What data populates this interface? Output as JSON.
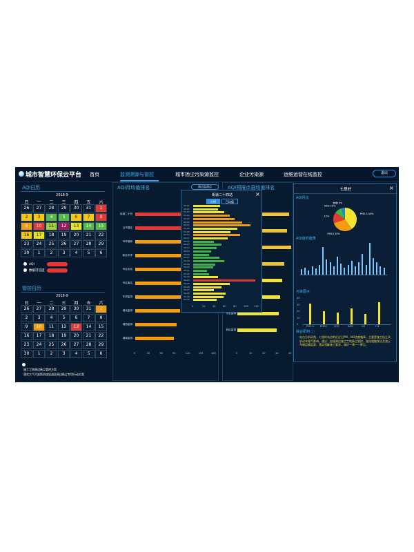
{
  "header": {
    "title": "城市智慧环保云平台",
    "nav": [
      "首页",
      "监测溯源与管控",
      "城市扬尘污染源监控",
      "企业污染源",
      "运维运营在线监控"
    ],
    "exit": "退出"
  },
  "aqi_calendar": {
    "title": "AQI日历",
    "month": "2018-9",
    "weekdays": [
      "日",
      "一",
      "二",
      "三",
      "四",
      "五",
      "六"
    ],
    "days": [
      {
        "d": "26",
        "c": "#0b1d31"
      },
      {
        "d": "27",
        "c": "#0b1d31"
      },
      {
        "d": "28",
        "c": "#0b1d31"
      },
      {
        "d": "29",
        "c": "#0b1d31"
      },
      {
        "d": "30",
        "c": "#0b1d31"
      },
      {
        "d": "31",
        "c": "#0b1d31"
      },
      {
        "d": "1",
        "c": "#e53935"
      },
      {
        "d": "2",
        "c": "#f5c518"
      },
      {
        "d": "3",
        "c": "#f5c518"
      },
      {
        "d": "4",
        "c": "#58b947"
      },
      {
        "d": "5",
        "c": "#58b947"
      },
      {
        "d": "6",
        "c": "#f5c518"
      },
      {
        "d": "7",
        "c": "#f5c518"
      },
      {
        "d": "8",
        "c": "#e53935"
      },
      {
        "d": "9",
        "c": "#f39c12"
      },
      {
        "d": "10",
        "c": "#e53935"
      },
      {
        "d": "11",
        "c": "#a6cf35"
      },
      {
        "d": "12",
        "c": "#9b1b55"
      },
      {
        "d": "13",
        "c": "#e8e31f"
      },
      {
        "d": "14",
        "c": "#58b947"
      },
      {
        "d": "15",
        "c": "#58b947"
      },
      {
        "d": "16",
        "c": "#f5c518"
      },
      {
        "d": "17",
        "c": "#e8e31f"
      },
      {
        "d": "18",
        "c": "#0b1d31"
      },
      {
        "d": "19",
        "c": "#0b1d31"
      },
      {
        "d": "20",
        "c": "#0b1d31"
      },
      {
        "d": "21",
        "c": "#0b1d31"
      },
      {
        "d": "22",
        "c": "#0b1d31"
      },
      {
        "d": "23",
        "c": "#0b1d31"
      },
      {
        "d": "24",
        "c": "#0b1d31"
      },
      {
        "d": "25",
        "c": "#0b1d31"
      },
      {
        "d": "26",
        "c": "#0b1d31"
      },
      {
        "d": "27",
        "c": "#0b1d31"
      },
      {
        "d": "28",
        "c": "#0b1d31"
      },
      {
        "d": "29",
        "c": "#0b1d31"
      },
      {
        "d": "30",
        "c": "#0b1d31"
      },
      {
        "d": "1",
        "c": "#0b1d31"
      },
      {
        "d": "2",
        "c": "#0b1d31"
      },
      {
        "d": "3",
        "c": "#0b1d31"
      },
      {
        "d": "4",
        "c": "#0b1d31"
      },
      {
        "d": "5",
        "c": "#0b1d31"
      },
      {
        "d": "6",
        "c": "#0b1d31"
      }
    ],
    "legend": [
      "AQI",
      "数据可信度"
    ]
  },
  "mgmt_calendar": {
    "title": "管控日历",
    "month": "2018-9",
    "weekdays": [
      "日",
      "一",
      "二",
      "三",
      "四",
      "五",
      "六"
    ],
    "days": [
      {
        "d": "26",
        "c": "#0b1d31"
      },
      {
        "d": "27",
        "c": "#0b1d31"
      },
      {
        "d": "28",
        "c": "#0b1d31"
      },
      {
        "d": "29",
        "c": "#0b1d31"
      },
      {
        "d": "30",
        "c": "#0b1d31"
      },
      {
        "d": "31",
        "c": "#0b1d31"
      },
      {
        "d": "1",
        "c": "#f39c12"
      },
      {
        "d": "2",
        "c": "#0b1d31"
      },
      {
        "d": "3",
        "c": "#0b1d31"
      },
      {
        "d": "4",
        "c": "#0b1d31"
      },
      {
        "d": "5",
        "c": "#0b1d31"
      },
      {
        "d": "6",
        "c": "#0b1d31"
      },
      {
        "d": "7",
        "c": "#0b1d31"
      },
      {
        "d": "8",
        "c": "#0b1d31"
      },
      {
        "d": "9",
        "c": "#0b1d31"
      },
      {
        "d": "10",
        "c": "#f39c12"
      },
      {
        "d": "11",
        "c": "#0b1d31"
      },
      {
        "d": "12",
        "c": "#0b1d31"
      },
      {
        "d": "13",
        "c": "#e53935"
      },
      {
        "d": "14",
        "c": "#0b1d31"
      },
      {
        "d": "15",
        "c": "#0b1d31"
      },
      {
        "d": "16",
        "c": "#0b1d31"
      },
      {
        "d": "17",
        "c": "#0b1d31"
      },
      {
        "d": "18",
        "c": "#0b1d31"
      },
      {
        "d": "19",
        "c": "#0b1d31"
      },
      {
        "d": "20",
        "c": "#0b1d31"
      },
      {
        "d": "21",
        "c": "#0b1d31"
      },
      {
        "d": "22",
        "c": "#0b1d31"
      },
      {
        "d": "23",
        "c": "#0b1d31"
      },
      {
        "d": "24",
        "c": "#0b1d31"
      },
      {
        "d": "25",
        "c": "#0b1d31"
      },
      {
        "d": "26",
        "c": "#0b1d31"
      },
      {
        "d": "27",
        "c": "#0b1d31"
      },
      {
        "d": "28",
        "c": "#0b1d31"
      },
      {
        "d": "29",
        "c": "#0b1d31"
      },
      {
        "d": "30",
        "c": "#0b1d31"
      },
      {
        "d": "1",
        "c": "#0b1d31"
      },
      {
        "d": "2",
        "c": "#0b1d31"
      },
      {
        "d": "3",
        "c": "#0b1d31"
      },
      {
        "d": "4",
        "c": "#0b1d31"
      },
      {
        "d": "5",
        "c": "#0b1d31"
      },
      {
        "d": "6",
        "c": "#0b1d31"
      }
    ],
    "notes": [
      "施工工地周边扬尘管控方案",
      "落实大气污染防治攻坚战及周边扬尘专项行动方案"
    ]
  },
  "aqi_rank": {
    "title": "AQI月均值排名",
    "badge": "周边监测点",
    "stations": [
      "街道二十四",
      "云华园区",
      "市环保局",
      "新区中学",
      "市区北站",
      "市区南站",
      "东郊监测",
      "城北监测",
      "城西监测",
      "城南监测"
    ],
    "values": [
      118,
      128,
      116,
      122,
      120,
      112,
      108,
      104,
      96,
      90
    ],
    "bar_colors": [
      "#e53935",
      "#e53935",
      "#f39c12",
      "#f39c12",
      "#f39c12",
      "#f39c12",
      "#f39c12",
      "#f39c12",
      "#f39c12",
      "#f39c12"
    ],
    "xticks": [
      "0",
      "30",
      "60",
      "90",
      "120",
      "150",
      "180"
    ]
  },
  "aqi_rank2": {
    "title": "AQI预报点县均值排名",
    "stations": [
      "",
      "",
      "",
      "",
      "",
      "城市监测",
      "东区监测",
      "西区监测"
    ],
    "values": [
      58,
      55,
      60,
      52,
      50,
      48,
      46,
      44
    ],
    "xticks": [
      "0",
      "10",
      "20",
      "30",
      "40"
    ]
  },
  "popup": {
    "title": "街道二十四站",
    "tabs": [
      "小时",
      "日均值"
    ],
    "rows": [
      "09-01",
      "09-02",
      "09-03",
      "09-04",
      "09-05",
      "09-06",
      "09-07",
      "09-08",
      "09-09",
      "09-10",
      "09-11",
      "09-12",
      "09-13",
      "09-14",
      "09-15",
      "09-16",
      "09-17",
      "09-18",
      "09-19",
      "09-20",
      "09-21",
      "09-22",
      "09-23",
      "09-24",
      "09-25",
      "09-26",
      "09-27",
      "09-28",
      "09-29",
      "09-30"
    ],
    "values": [
      52,
      48,
      60,
      70,
      80,
      95,
      110,
      85,
      72,
      90,
      66,
      40,
      55,
      45,
      35,
      30,
      50,
      60,
      42,
      38,
      26,
      30,
      48,
      120,
      70,
      55,
      40,
      62,
      58,
      45
    ],
    "colors": [
      "#f2e431",
      "#f2e431",
      "#f2e431",
      "#f39c12",
      "#f39c12",
      "#f39c12",
      "#f39c12",
      "#f2e431",
      "#f2e431",
      "#f39c12",
      "#f2e431",
      "#3fb34a",
      "#3fb34a",
      "#3fb34a",
      "#3fb34a",
      "#3fb34a",
      "#3fb34a",
      "#3fb34a",
      "#3fb34a",
      "#3fb34a",
      "#3fb34a",
      "#3fb34a",
      "#f2e431",
      "#e53935",
      "#f2e431",
      "#f2e431",
      "#f2e431",
      "#f2e431",
      "#f2e431",
      "#f2e431"
    ],
    "xticks": [
      "0",
      "20",
      "40",
      "60",
      "80",
      "100",
      "120"
    ]
  },
  "detail": {
    "title": "七里岭",
    "close": "×",
    "sec1": "AQI月比",
    "pie": {
      "slices": [
        {
          "label": "PM2.5 40%",
          "value": 40,
          "color": "#f2e431"
        },
        {
          "label": "PM10 30%",
          "value": 30,
          "color": "#f39c12"
        },
        {
          "label": "O3 15%",
          "value": 15,
          "color": "#e53935"
        },
        {
          "label": "NO2 10%",
          "value": 10,
          "color": "#3fb34a"
        },
        {
          "label": "其他 5%",
          "value": 5,
          "color": "#1f88d0"
        }
      ]
    },
    "sec2": "AQI逐时趋势",
    "trend": [
      8,
      10,
      6,
      12,
      9,
      14,
      40,
      22,
      18,
      12,
      26,
      16,
      10,
      14,
      20,
      12,
      18,
      30,
      14,
      46,
      24,
      18,
      12,
      10
    ],
    "sec3": "污染因子",
    "factors": {
      "labels": [
        "PM2.5",
        "PM10",
        "SO2",
        "NO2",
        "CO",
        "O3"
      ],
      "values": [
        32,
        20,
        18,
        24,
        16,
        34
      ],
      "yticks": [
        "0",
        "10",
        "20",
        "30",
        "40"
      ]
    },
    "sec4": "综合研判 ⓘ",
    "analysis": "站点分析研判，七里岭站点附近近日PM、NO浓度偏高，主要受施工扬尘及机动车尾气影响，建议：加强周边施工工地扬尘管控，强化道路保洁及渣土车辆运输监管，落实错峰施工要求，做好一清一一降尘。"
  }
}
